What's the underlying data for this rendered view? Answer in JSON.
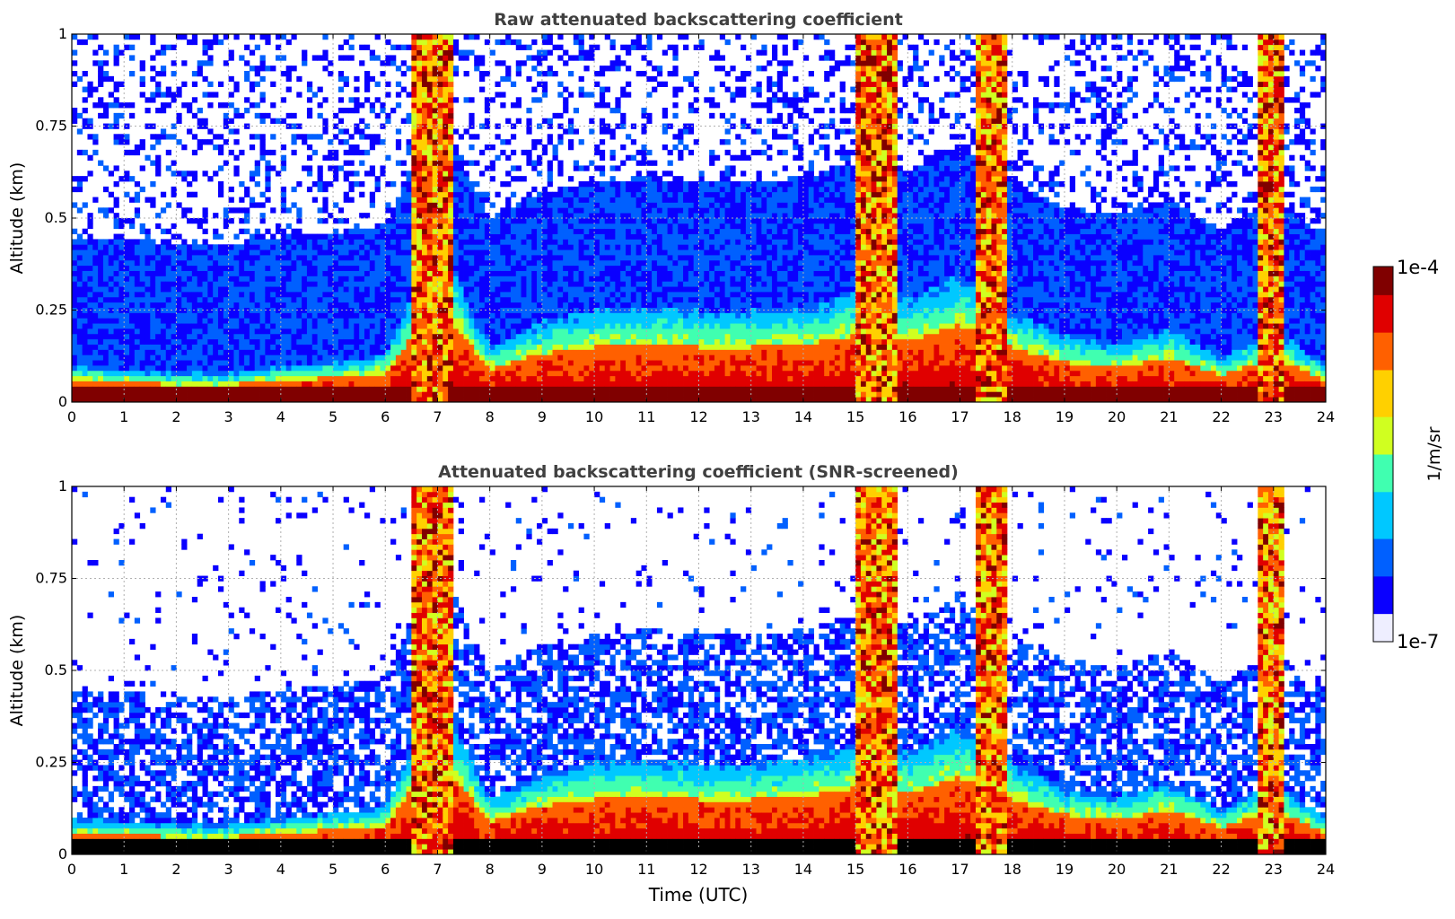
{
  "chart_data": [
    {
      "type": "heatmap",
      "title": "Raw attenuated backscattering coefficient",
      "xlabel": "",
      "ylabel": "Altitude (km)",
      "xlim": [
        0,
        24
      ],
      "ylim": [
        0,
        1
      ],
      "xticks": [
        "0",
        "1",
        "2",
        "3",
        "4",
        "5",
        "6",
        "7",
        "8",
        "9",
        "10",
        "11",
        "12",
        "13",
        "14",
        "15",
        "16",
        "17",
        "18",
        "19",
        "20",
        "21",
        "22",
        "23",
        "24"
      ],
      "yticks": [
        "0",
        "0.25",
        "0.5",
        "0.75",
        "1"
      ],
      "grid": true,
      "screened": false,
      "boundary_layer_top_km": [
        [
          0,
          0.1
        ],
        [
          1,
          0.09
        ],
        [
          2,
          0.08
        ],
        [
          3,
          0.08
        ],
        [
          4,
          0.1
        ],
        [
          5,
          0.11
        ],
        [
          6,
          0.13
        ],
        [
          7,
          0.45
        ],
        [
          8,
          0.15
        ],
        [
          9,
          0.22
        ],
        [
          10,
          0.25
        ],
        [
          11,
          0.26
        ],
        [
          12,
          0.25
        ],
        [
          13,
          0.25
        ],
        [
          14,
          0.26
        ],
        [
          15,
          0.3
        ],
        [
          16,
          0.28
        ],
        [
          17,
          0.35
        ],
        [
          18,
          0.25
        ],
        [
          19,
          0.18
        ],
        [
          20,
          0.16
        ],
        [
          21,
          0.2
        ],
        [
          22,
          0.12
        ],
        [
          23,
          0.2
        ],
        [
          24,
          0.1
        ]
      ],
      "cloud_columns_utc": [
        [
          6.5,
          7.3
        ],
        [
          15.05,
          15.75
        ],
        [
          17.35,
          17.9
        ],
        [
          22.7,
          23.2
        ]
      ]
    },
    {
      "type": "heatmap",
      "title": "Attenuated backscattering coefficient (SNR-screened)",
      "xlabel": "Time (UTC)",
      "ylabel": "Altitude (km)",
      "xlim": [
        0,
        24
      ],
      "ylim": [
        0,
        1
      ],
      "xticks": [
        "0",
        "1",
        "2",
        "3",
        "4",
        "5",
        "6",
        "7",
        "8",
        "9",
        "10",
        "11",
        "12",
        "13",
        "14",
        "15",
        "16",
        "17",
        "18",
        "19",
        "20",
        "21",
        "22",
        "23",
        "24"
      ],
      "yticks": [
        "0",
        "0.25",
        "0.5",
        "0.75",
        "1"
      ],
      "grid": true,
      "screened": true,
      "boundary_layer_top_km": [
        [
          0,
          0.1
        ],
        [
          1,
          0.09
        ],
        [
          2,
          0.08
        ],
        [
          3,
          0.08
        ],
        [
          4,
          0.1
        ],
        [
          5,
          0.11
        ],
        [
          6,
          0.13
        ],
        [
          7,
          0.45
        ],
        [
          8,
          0.15
        ],
        [
          9,
          0.22
        ],
        [
          10,
          0.25
        ],
        [
          11,
          0.26
        ],
        [
          12,
          0.25
        ],
        [
          13,
          0.25
        ],
        [
          14,
          0.26
        ],
        [
          15,
          0.3
        ],
        [
          16,
          0.28
        ],
        [
          17,
          0.35
        ],
        [
          18,
          0.25
        ],
        [
          19,
          0.18
        ],
        [
          20,
          0.16
        ],
        [
          21,
          0.2
        ],
        [
          22,
          0.12
        ],
        [
          23,
          0.2
        ],
        [
          24,
          0.1
        ]
      ],
      "cloud_columns_utc": [
        [
          6.5,
          7.3
        ],
        [
          15.05,
          15.75
        ],
        [
          17.35,
          17.9
        ],
        [
          22.7,
          23.2
        ]
      ]
    }
  ],
  "colorbar": {
    "max_label": "1e-4",
    "min_label": "1e-7",
    "unit_label": "1/m/sr",
    "scale": "log",
    "colors": [
      "#eeeeff",
      "#0a00ff",
      "#0060ff",
      "#00c8ff",
      "#40ffb0",
      "#d0ff20",
      "#ffd000",
      "#ff6000",
      "#e00000",
      "#800000"
    ]
  }
}
